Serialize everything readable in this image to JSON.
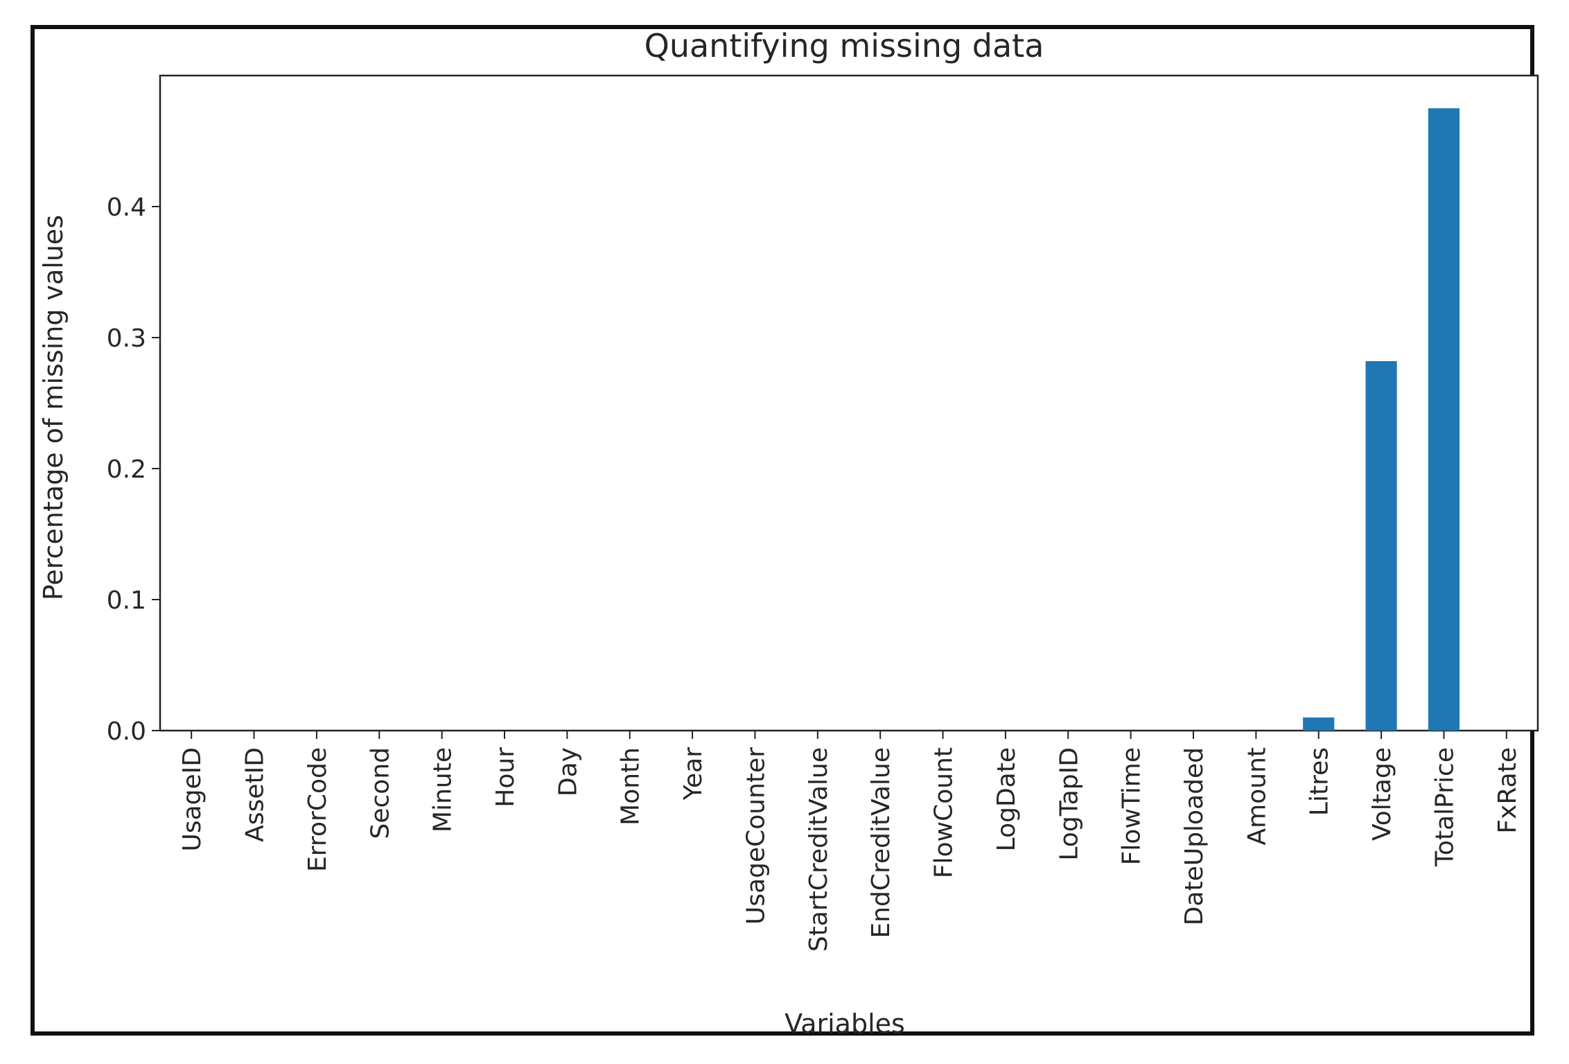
{
  "chart_data": {
    "type": "bar",
    "title": "Quantifying missing data",
    "xlabel": "Variables",
    "ylabel": "Percentage of missing values",
    "categories": [
      "UsageID",
      "AssetID",
      "ErrorCode",
      "Second",
      "Minute",
      "Hour",
      "Day",
      "Month",
      "Year",
      "UsageCounter",
      "StartCreditValue",
      "EndCreditValue",
      "FlowCount",
      "LogDate",
      "LogTapID",
      "FlowTime",
      "DateUploaded",
      "Amount",
      "Litres",
      "Voltage",
      "TotalPrice",
      "FxRate"
    ],
    "values": [
      0,
      0,
      0,
      0,
      0,
      0,
      0,
      0,
      0,
      0,
      0,
      0,
      0,
      0,
      0,
      0,
      0,
      0,
      0.01,
      0.282,
      0.475,
      0
    ],
    "ylim": [
      0,
      0.5
    ],
    "yticks": [
      "0.0",
      "0.1",
      "0.2",
      "0.3",
      "0.4"
    ],
    "bar_color": "#1f77b4",
    "grid": false,
    "legend": "none"
  }
}
